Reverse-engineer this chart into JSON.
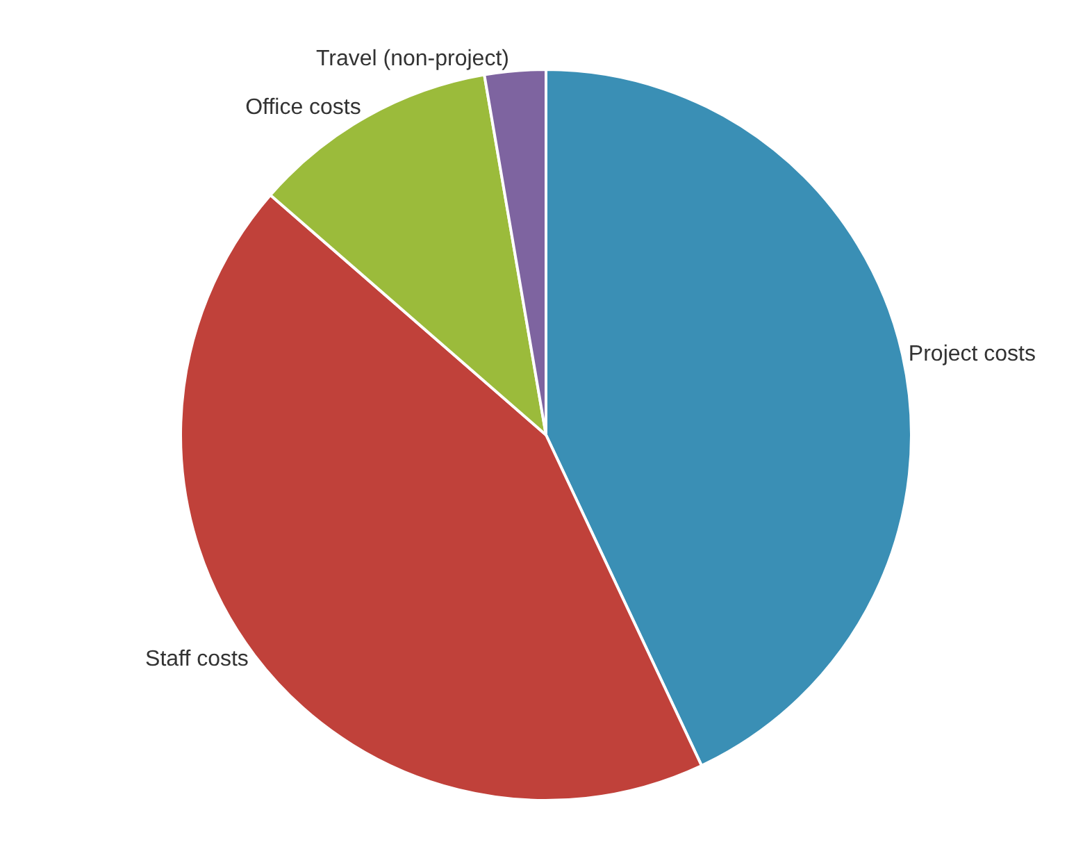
{
  "chart_data": {
    "type": "pie",
    "categories": [
      "Project costs",
      "Staff costs",
      "Office costs",
      "Travel (non-project)"
    ],
    "values": [
      43,
      43.4,
      10.9,
      2.7
    ],
    "colors": [
      "#3a8fb5",
      "#c0413a",
      "#9bbb3b",
      "#7e64a0"
    ]
  }
}
